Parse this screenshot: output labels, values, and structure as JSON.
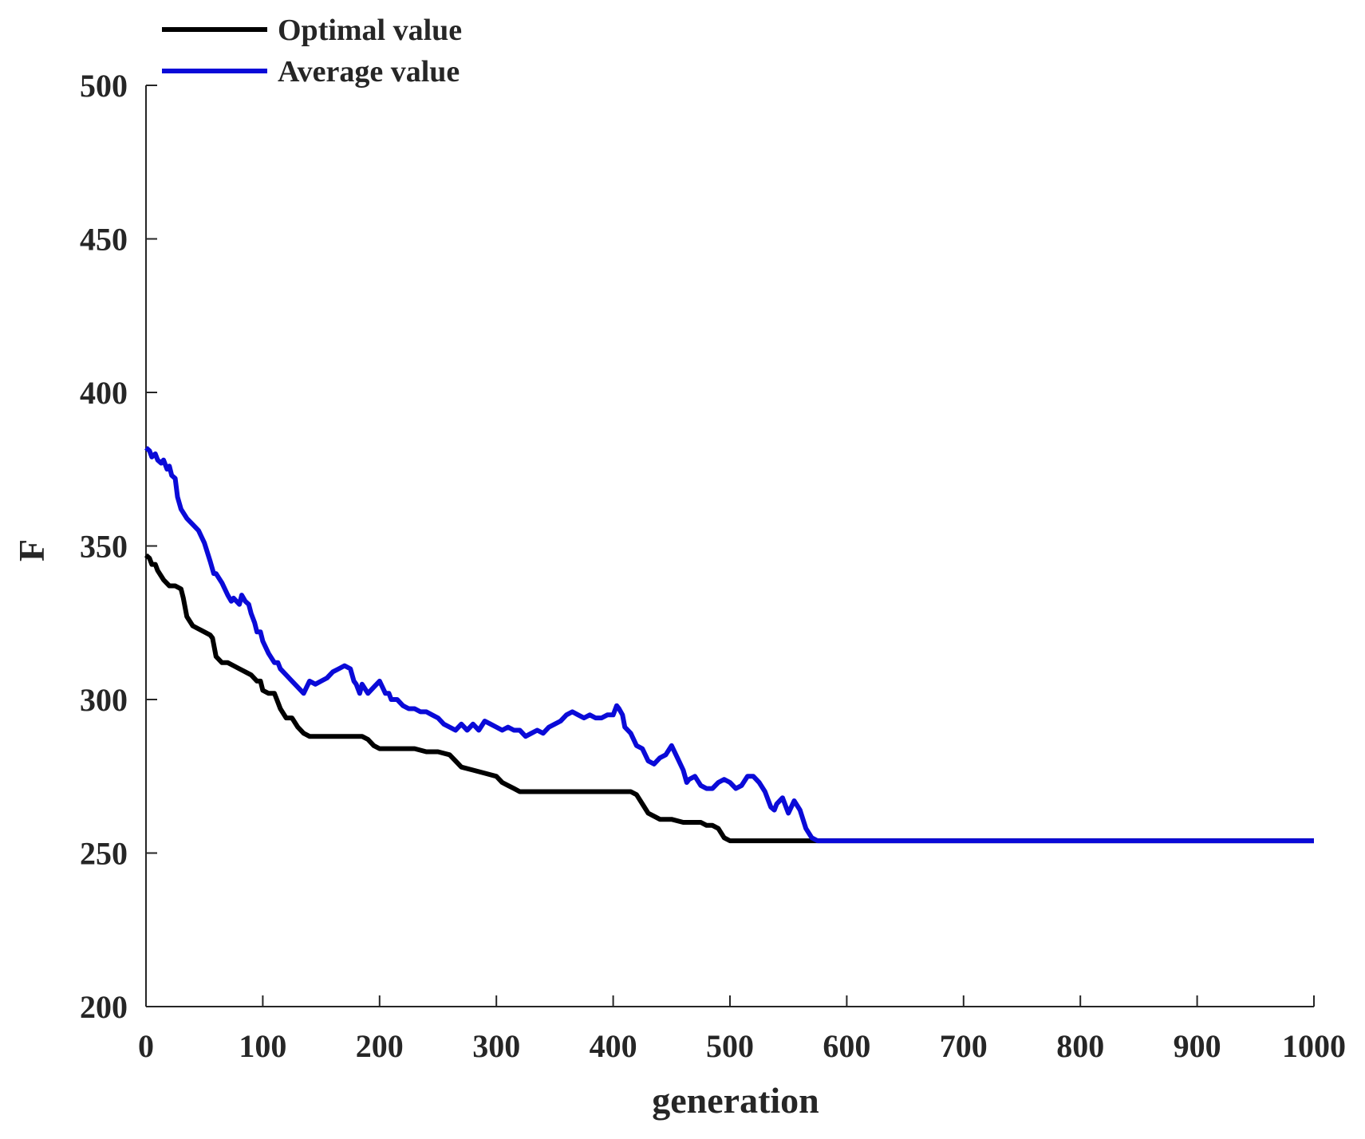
{
  "chart_data": {
    "type": "line",
    "title": "",
    "xlabel": "generation",
    "ylabel": "F",
    "xlim": [
      0,
      1000
    ],
    "ylim": [
      200,
      500
    ],
    "xticks": [
      0,
      100,
      200,
      300,
      400,
      500,
      600,
      700,
      800,
      900,
      1000
    ],
    "yticks": [
      200,
      250,
      300,
      350,
      400,
      450,
      500
    ],
    "xtick_labels": [
      "0",
      "100",
      "200",
      "300",
      "400",
      "500",
      "600",
      "700",
      "800",
      "900",
      "1000"
    ],
    "ytick_labels": [
      "200",
      "250",
      "300",
      "350",
      "400",
      "450",
      "500"
    ],
    "legend_position": "top-left",
    "grid": false,
    "series": [
      {
        "name": "Optimal value",
        "color": "#000000",
        "x": [
          0,
          3,
          5,
          8,
          10,
          15,
          20,
          25,
          30,
          32,
          35,
          40,
          45,
          50,
          55,
          57,
          60,
          65,
          70,
          75,
          80,
          85,
          90,
          95,
          98,
          100,
          105,
          110,
          112,
          115,
          120,
          125,
          130,
          135,
          140,
          145,
          150,
          160,
          170,
          180,
          185,
          190,
          195,
          200,
          210,
          220,
          230,
          240,
          250,
          260,
          265,
          270,
          280,
          290,
          300,
          305,
          310,
          315,
          320,
          330,
          340,
          350,
          360,
          370,
          380,
          390,
          400,
          410,
          415,
          420,
          425,
          430,
          435,
          440,
          450,
          460,
          470,
          475,
          480,
          485,
          490,
          495,
          500,
          520,
          540,
          560,
          580,
          600,
          700,
          800,
          900,
          1000
        ],
        "y": [
          347,
          346,
          344,
          344,
          342,
          339,
          337,
          337,
          336,
          333,
          327,
          324,
          323,
          322,
          321,
          320,
          314,
          312,
          312,
          311,
          310,
          309,
          308,
          306,
          306,
          303,
          302,
          302,
          300,
          297,
          294,
          294,
          291,
          289,
          288,
          288,
          288,
          288,
          288,
          288,
          288,
          287,
          285,
          284,
          284,
          284,
          284,
          283,
          283,
          282,
          280,
          278,
          277,
          276,
          275,
          273,
          272,
          271,
          270,
          270,
          270,
          270,
          270,
          270,
          270,
          270,
          270,
          270,
          270,
          269,
          266,
          263,
          262,
          261,
          261,
          260,
          260,
          260,
          259,
          259,
          258,
          255,
          254,
          254,
          254,
          254,
          254,
          254,
          254,
          254,
          254,
          254
        ]
      },
      {
        "name": "Average value",
        "color": "#0a0ad8",
        "x": [
          0,
          3,
          5,
          8,
          10,
          13,
          15,
          18,
          20,
          22,
          25,
          27,
          30,
          35,
          40,
          45,
          50,
          55,
          58,
          60,
          65,
          70,
          73,
          75,
          80,
          82,
          85,
          88,
          90,
          93,
          95,
          98,
          100,
          105,
          110,
          113,
          115,
          120,
          125,
          130,
          135,
          140,
          145,
          150,
          155,
          160,
          165,
          170,
          175,
          178,
          180,
          183,
          185,
          190,
          195,
          200,
          205,
          208,
          210,
          215,
          220,
          225,
          230,
          235,
          240,
          245,
          250,
          255,
          260,
          265,
          270,
          275,
          280,
          285,
          290,
          295,
          300,
          305,
          310,
          315,
          320,
          325,
          330,
          335,
          340,
          345,
          350,
          355,
          360,
          365,
          370,
          375,
          380,
          385,
          390,
          395,
          400,
          403,
          405,
          408,
          410,
          415,
          420,
          425,
          430,
          435,
          440,
          445,
          450,
          455,
          460,
          463,
          465,
          470,
          475,
          480,
          485,
          490,
          495,
          500,
          505,
          510,
          515,
          520,
          525,
          530,
          535,
          538,
          540,
          545,
          550,
          555,
          560,
          565,
          570,
          575,
          600,
          700,
          800,
          900,
          1000
        ],
        "y": [
          382,
          381,
          379,
          380,
          378,
          377,
          378,
          375,
          376,
          373,
          372,
          366,
          362,
          359,
          357,
          355,
          351,
          345,
          341,
          341,
          338,
          334,
          332,
          333,
          331,
          334,
          332,
          331,
          328,
          325,
          322,
          322,
          319,
          315,
          312,
          312,
          310,
          308,
          306,
          304,
          302,
          306,
          305,
          306,
          307,
          309,
          310,
          311,
          310,
          306,
          305,
          302,
          305,
          302,
          304,
          306,
          302,
          302,
          300,
          300,
          298,
          297,
          297,
          296,
          296,
          295,
          294,
          292,
          291,
          290,
          292,
          290,
          292,
          290,
          293,
          292,
          291,
          290,
          291,
          290,
          290,
          288,
          289,
          290,
          289,
          291,
          292,
          293,
          295,
          296,
          295,
          294,
          295,
          294,
          294,
          295,
          295,
          298,
          297,
          295,
          291,
          289,
          285,
          284,
          280,
          279,
          281,
          282,
          285,
          281,
          277,
          273,
          274,
          275,
          272,
          271,
          271,
          273,
          274,
          273,
          271,
          272,
          275,
          275,
          273,
          270,
          265,
          264,
          266,
          268,
          263,
          267,
          264,
          258,
          255,
          254,
          254,
          254,
          254,
          254,
          254
        ]
      }
    ]
  }
}
